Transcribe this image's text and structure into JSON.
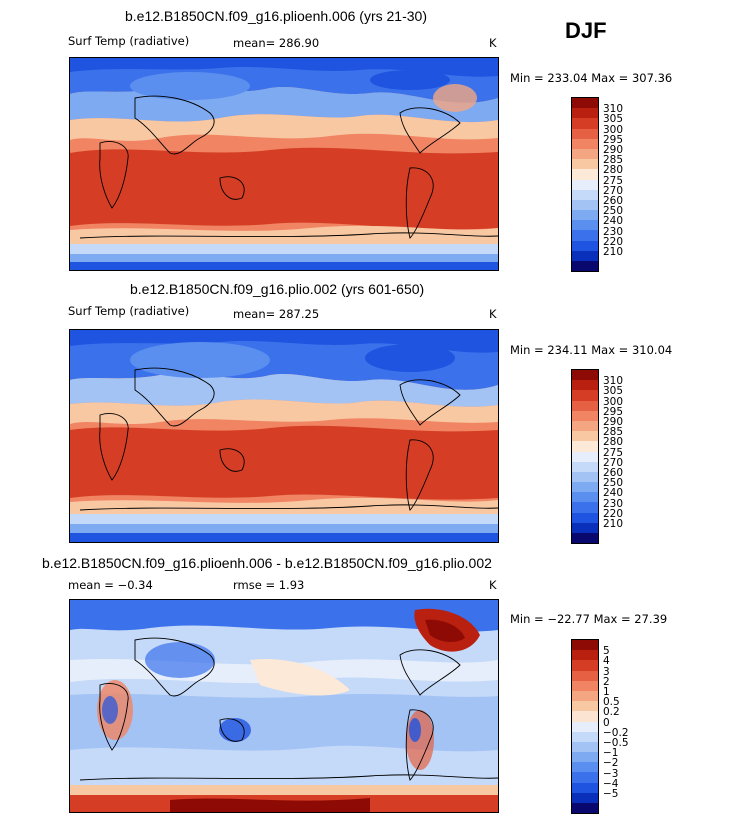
{
  "season": "DJF",
  "panels": [
    {
      "title": "b.e12.B1850CN.f09_g16.plioenh.006 (yrs 21-30)",
      "variable": "Surf Temp (radiative)",
      "stat": "mean= 286.90",
      "units": "K",
      "minmax": "Min = 233.04  Max = 307.36",
      "colors": [
        "#08086e",
        "#0a2fbb",
        "#1f54e0",
        "#3b72ec",
        "#5b8fef",
        "#7eaaf2",
        "#a3c3f5",
        "#c5d9f8",
        "#e6eefb",
        "#fce9d7",
        "#f8c8a3",
        "#f4a682",
        "#f08463",
        "#e66143",
        "#d53e25",
        "#ba2010",
        "#8e0b05"
      ],
      "labels": [
        "310",
        "305",
        "300",
        "295",
        "290",
        "285",
        "280",
        "275",
        "270",
        "260",
        "250",
        "240",
        "230",
        "220",
        "210"
      ]
    },
    {
      "title": "b.e12.B1850CN.f09_g16.plio.002 (yrs 601-650)",
      "variable": "Surf Temp (radiative)",
      "stat": "mean= 287.25",
      "units": "K",
      "minmax": "Min = 234.11  Max = 310.04",
      "colors": [
        "#08086e",
        "#0a2fbb",
        "#1f54e0",
        "#3b72ec",
        "#5b8fef",
        "#7eaaf2",
        "#a3c3f5",
        "#c5d9f8",
        "#e6eefb",
        "#fce9d7",
        "#f8c8a3",
        "#f4a682",
        "#f08463",
        "#e66143",
        "#d53e25",
        "#ba2010",
        "#8e0b05"
      ],
      "labels": [
        "310",
        "305",
        "300",
        "295",
        "290",
        "285",
        "280",
        "275",
        "270",
        "260",
        "250",
        "240",
        "230",
        "220",
        "210"
      ]
    },
    {
      "title": "b.e12.B1850CN.f09_g16.plioenh.006 - b.e12.B1850CN.f09_g16.plio.002",
      "mean": "mean =   −0.34",
      "rmse": "rmse =    1.93",
      "units": "K",
      "minmax": "Min = −22.77  Max =  27.39",
      "colors": [
        "#08086e",
        "#0a2fbb",
        "#1f54e0",
        "#3b72ec",
        "#5b8fef",
        "#7eaaf2",
        "#a3c3f5",
        "#c5d9f8",
        "#e6eefb",
        "#fbe4d2",
        "#f8c8a3",
        "#f4a682",
        "#f08463",
        "#e66143",
        "#d53e25",
        "#ba2010",
        "#8e0b05"
      ],
      "labels": [
        "5",
        "4",
        "3",
        "2",
        "1",
        "0.5",
        "0.2",
        "0",
        "−0.2",
        "−0.5",
        "−1",
        "−2",
        "−3",
        "−4",
        "−5"
      ]
    }
  ]
}
